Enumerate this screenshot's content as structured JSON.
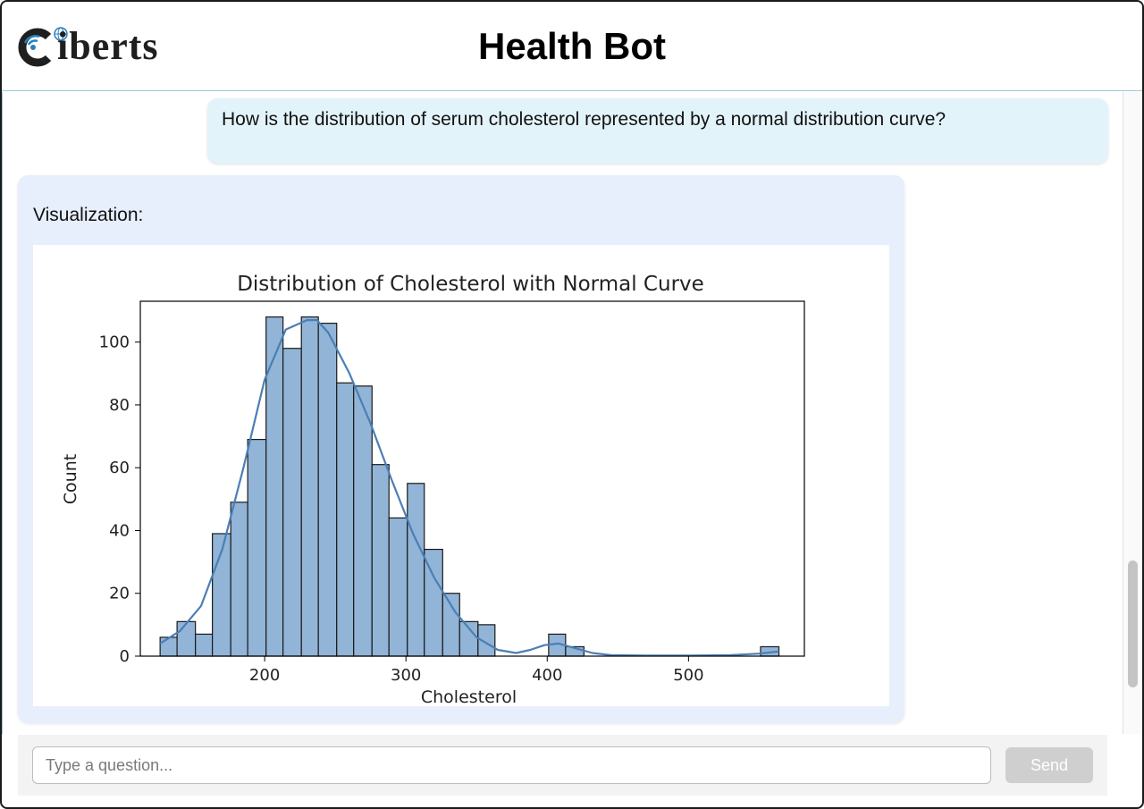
{
  "header": {
    "logo_text": "iberts",
    "title": "Health Bot"
  },
  "messages": {
    "user": "How is the distribution of serum cholesterol represented by a normal distribution curve?",
    "bot_label": "Visualization:"
  },
  "composer": {
    "placeholder": "Type a question...",
    "send_label": "Send"
  },
  "colors": {
    "bar_fill": "#92b4d6",
    "bar_edge": "#1a1a1a",
    "curve": "#4a7fb5",
    "bot_bubble": "#e7eefc",
    "user_bubble": "#e3f3fa",
    "logo_blue": "#2a7fc0"
  },
  "chart_data": {
    "type": "bar",
    "title": "Distribution of Cholesterol with Normal Curve",
    "xlabel": "Cholesterol",
    "ylabel": "Count",
    "xlim": [
      112,
      582
    ],
    "ylim": [
      0,
      113
    ],
    "xticks": [
      200,
      300,
      400,
      500
    ],
    "yticks": [
      0,
      20,
      40,
      60,
      80,
      100
    ],
    "bins": [
      {
        "x0": 126,
        "x1": 138,
        "count": 6
      },
      {
        "x0": 138,
        "x1": 151,
        "count": 11
      },
      {
        "x0": 151,
        "x1": 163,
        "count": 7
      },
      {
        "x0": 163,
        "x1": 176,
        "count": 39
      },
      {
        "x0": 176,
        "x1": 188,
        "count": 49
      },
      {
        "x0": 188,
        "x1": 201,
        "count": 69
      },
      {
        "x0": 201,
        "x1": 213,
        "count": 108
      },
      {
        "x0": 213,
        "x1": 226,
        "count": 98
      },
      {
        "x0": 226,
        "x1": 238,
        "count": 108
      },
      {
        "x0": 238,
        "x1": 251,
        "count": 106
      },
      {
        "x0": 251,
        "x1": 263,
        "count": 87
      },
      {
        "x0": 263,
        "x1": 276,
        "count": 86
      },
      {
        "x0": 276,
        "x1": 288,
        "count": 61
      },
      {
        "x0": 288,
        "x1": 301,
        "count": 44
      },
      {
        "x0": 301,
        "x1": 313,
        "count": 55
      },
      {
        "x0": 313,
        "x1": 326,
        "count": 34
      },
      {
        "x0": 326,
        "x1": 338,
        "count": 20
      },
      {
        "x0": 338,
        "x1": 351,
        "count": 11
      },
      {
        "x0": 351,
        "x1": 363,
        "count": 10
      },
      {
        "x0": 401,
        "x1": 413,
        "count": 7
      },
      {
        "x0": 413,
        "x1": 426,
        "count": 3
      },
      {
        "x0": 551,
        "x1": 564,
        "count": 3
      }
    ],
    "curve": {
      "x": [
        126,
        140,
        155,
        170,
        185,
        200,
        215,
        230,
        237,
        245,
        260,
        275,
        290,
        305,
        320,
        335,
        350,
        365,
        378,
        388,
        398,
        408,
        420,
        432,
        445,
        470,
        500,
        530,
        550,
        564
      ],
      "y": [
        4,
        8,
        16,
        34,
        60,
        88,
        104,
        107,
        107,
        103,
        90,
        74,
        56,
        39,
        25,
        14,
        6,
        2,
        1,
        2,
        3.5,
        4,
        2.5,
        1,
        0.3,
        0.2,
        0.2,
        0.3,
        0.8,
        1.5
      ]
    }
  }
}
